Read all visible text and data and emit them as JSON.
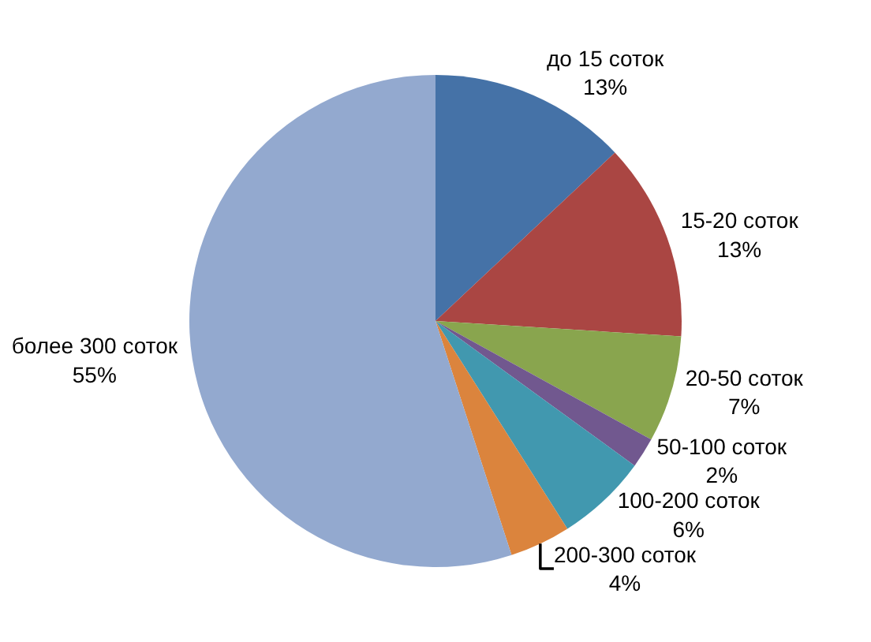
{
  "chart_data": {
    "type": "pie",
    "categories": [
      "до 15 соток",
      "15-20 соток",
      "20-50 соток",
      "50-100 соток",
      "100-200 соток",
      "200-300 соток",
      "более 300 соток"
    ],
    "values": [
      13,
      13,
      7,
      2,
      6,
      4,
      55
    ],
    "value_labels": [
      "13%",
      "13%",
      "7%",
      "2%",
      "6%",
      "4%",
      "55%"
    ],
    "colors": [
      "#4572a7",
      "#aa4643",
      "#89a54e",
      "#71588f",
      "#4198af",
      "#db843d",
      "#93a9cf"
    ],
    "legend": false
  }
}
